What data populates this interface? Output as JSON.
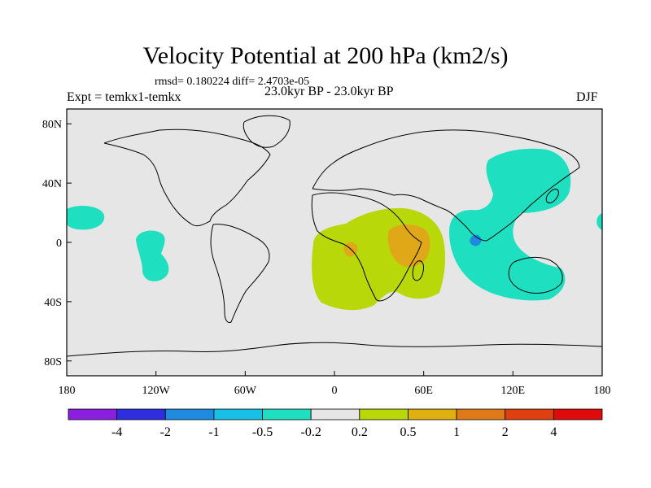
{
  "title": "Velocity Potential at 200 hPa (km2/s)",
  "stats": "rmsd= 0.180224 diff= 2.4703e-05",
  "left_label": "Expt = temkx1-temkx",
  "center_label": "23.0kyr BP - 23.0kyr BP",
  "right_label": "DJF",
  "x_ticks": [
    {
      "lon": -180,
      "label": "180"
    },
    {
      "lon": -120,
      "label": "120W"
    },
    {
      "lon": -60,
      "label": "60W"
    },
    {
      "lon": 0,
      "label": "0"
    },
    {
      "lon": 60,
      "label": "60E"
    },
    {
      "lon": 120,
      "label": "120E"
    },
    {
      "lon": 180,
      "label": "180"
    }
  ],
  "y_ticks": [
    {
      "lat": 80,
      "label": "80N"
    },
    {
      "lat": 40,
      "label": "40N"
    },
    {
      "lat": 0,
      "label": "0"
    },
    {
      "lat": -40,
      "label": "40S"
    },
    {
      "lat": -80,
      "label": "80S"
    }
  ],
  "colorbar": {
    "colors": [
      "#8b1fe0",
      "#2e2ee0",
      "#1f8be0",
      "#18c0e8",
      "#1ee0c0",
      "#e6e6e6",
      "#b8d80a",
      "#e0b010",
      "#e07a18",
      "#e04010",
      "#e00a0a"
    ],
    "labels": [
      "-4",
      "-2",
      "-1",
      "-0.5",
      "-0.2",
      "0.2",
      "0.5",
      "1",
      "2",
      "4"
    ]
  },
  "colors": {
    "land_bg": "#e6e6e6",
    "positive_mid": "#b8d80a",
    "positive_high": "#e0a818",
    "negative_mid": "#1ee0c0",
    "negative_high": "#1f8be0"
  }
}
